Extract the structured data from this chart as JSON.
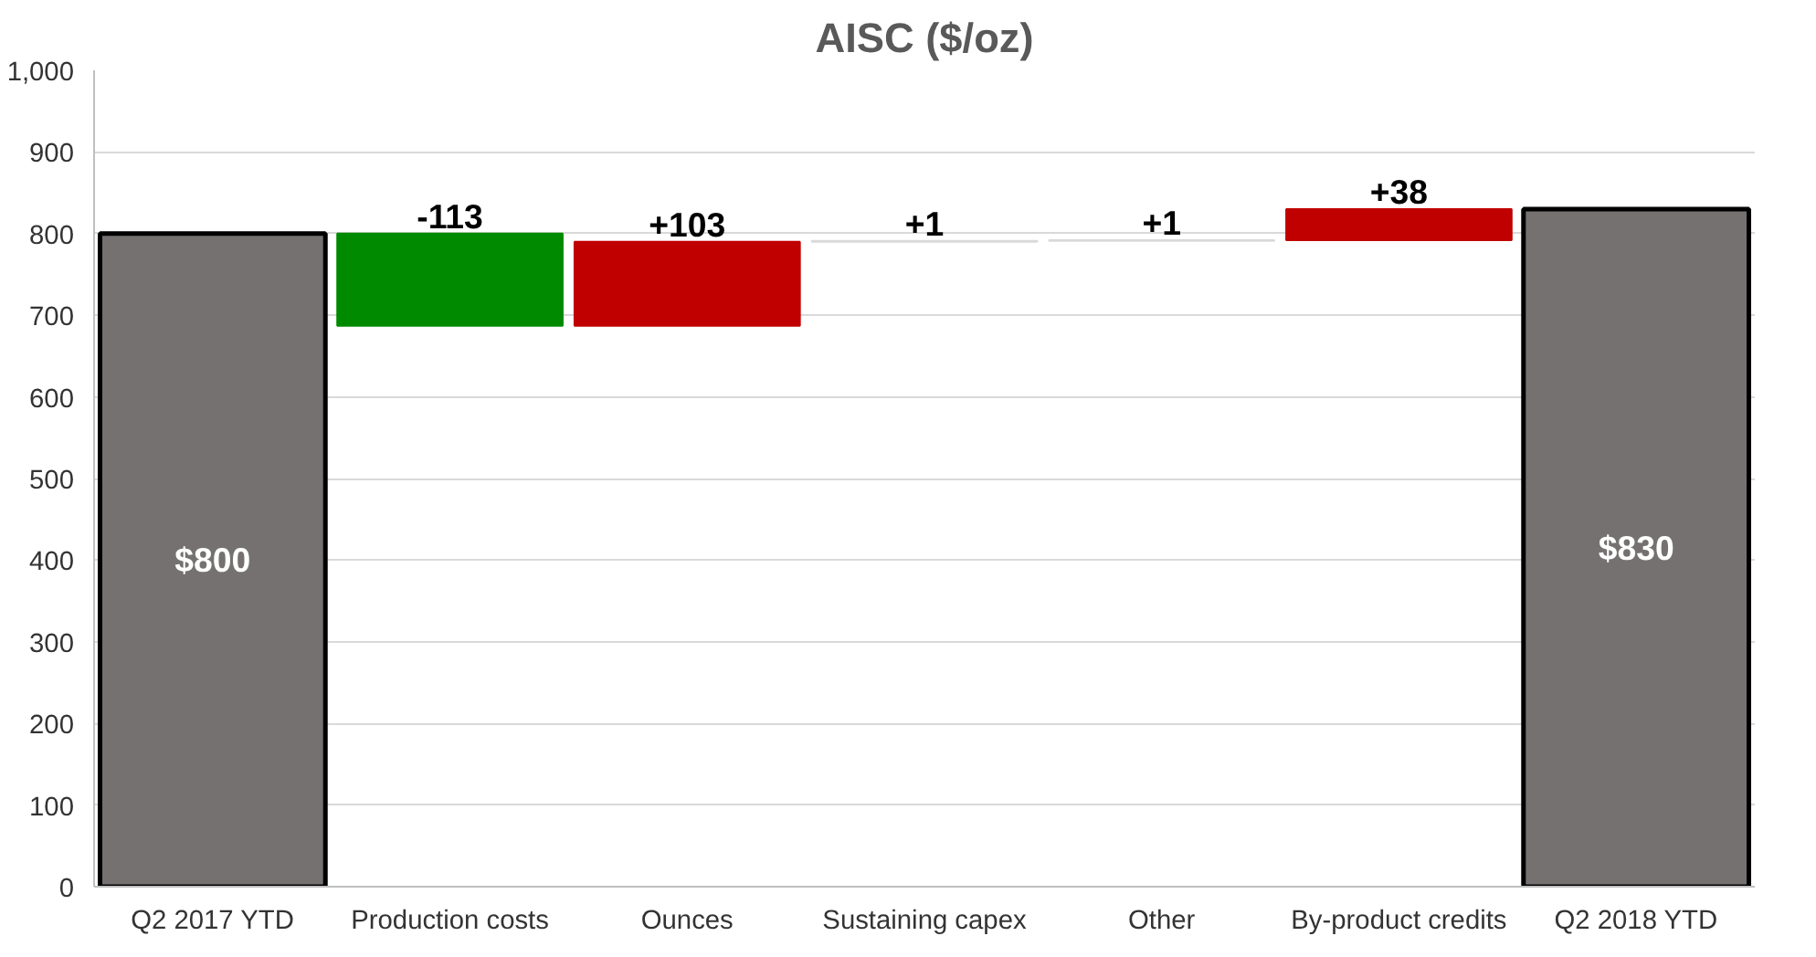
{
  "chart_data": {
    "type": "bar",
    "title": "AISC ($/oz)",
    "categories": [
      "Q2 2017 YTD",
      "Production costs",
      "Ounces",
      "Sustaining capex",
      "Other",
      "By-product credits",
      "Q2 2018 YTD"
    ],
    "values": [
      800,
      -113,
      103,
      1,
      1,
      38,
      830
    ],
    "base": [
      0,
      800,
      687,
      790,
      791,
      792,
      0
    ],
    "colors": [
      "#767171",
      "#008a00",
      "#c00000",
      "#d9d9d9",
      "#d9d9d9",
      "#c00000",
      "#767171"
    ],
    "value_labels": [
      "$800",
      "-113",
      "+103",
      "+1",
      "+1",
      "+38",
      "$830"
    ],
    "ylim": [
      0,
      1000
    ],
    "yticks": [
      0,
      100,
      200,
      300,
      400,
      500,
      600,
      700,
      800,
      900,
      {
        "value": 1000,
        "label": "1,000"
      }
    ],
    "grid": "y"
  }
}
